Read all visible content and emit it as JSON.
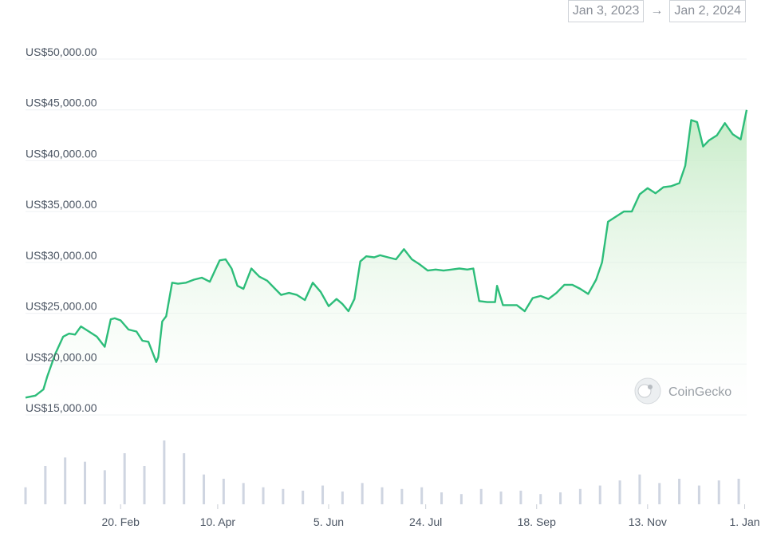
{
  "date_range": {
    "start": "Jan 3, 2023",
    "arrow": "→",
    "end": "Jan 2, 2024"
  },
  "watermark": {
    "text": "CoinGecko",
    "icon": "gecko-logo-icon"
  },
  "colors": {
    "line": "#2dbd7a",
    "fill_top": "#bfe9c0",
    "fill_bottom": "#ffffff",
    "volume": "#cfd5e1",
    "grid": "#eef0f3",
    "text": "#4b5563"
  },
  "chart_data": {
    "type": "line",
    "title": "",
    "xlabel": "",
    "ylabel": "",
    "ylim": [
      15000,
      50000
    ],
    "y_ticks": [
      {
        "value": 50000,
        "label": "US$50,000.00"
      },
      {
        "value": 45000,
        "label": "US$45,000.00"
      },
      {
        "value": 40000,
        "label": "US$40,000.00"
      },
      {
        "value": 35000,
        "label": "US$35,000.00"
      },
      {
        "value": 30000,
        "label": "US$30,000.00"
      },
      {
        "value": 25000,
        "label": "US$25,000.00"
      },
      {
        "value": 20000,
        "label": "US$20,000.00"
      },
      {
        "value": 15000,
        "label": "US$15,000.00"
      }
    ],
    "x_range": [
      "2023-01-03",
      "2024-01-02"
    ],
    "x_ticks": [
      {
        "date": "2023-02-20",
        "label": "20. Feb"
      },
      {
        "date": "2023-04-10",
        "label": "10. Apr"
      },
      {
        "date": "2023-06-05",
        "label": "5. Jun"
      },
      {
        "date": "2023-07-24",
        "label": "24. Jul"
      },
      {
        "date": "2023-09-18",
        "label": "18. Sep"
      },
      {
        "date": "2023-11-13",
        "label": "13. Nov"
      },
      {
        "date": "2024-01-01",
        "label": "1. Jan"
      }
    ],
    "grid": true,
    "series": [
      {
        "name": "",
        "x": [
          "2023-01-03",
          "2023-01-08",
          "2023-01-12",
          "2023-01-14",
          "2023-01-18",
          "2023-01-22",
          "2023-01-25",
          "2023-01-28",
          "2023-01-31",
          "2023-02-04",
          "2023-02-08",
          "2023-02-12",
          "2023-02-15",
          "2023-02-17",
          "2023-02-20",
          "2023-02-24",
          "2023-02-28",
          "2023-03-03",
          "2023-03-06",
          "2023-03-10",
          "2023-03-11",
          "2023-03-13",
          "2023-03-15",
          "2023-03-18",
          "2023-03-21",
          "2023-03-25",
          "2023-03-29",
          "2023-04-02",
          "2023-04-06",
          "2023-04-11",
          "2023-04-14",
          "2023-04-17",
          "2023-04-20",
          "2023-04-23",
          "2023-04-27",
          "2023-05-01",
          "2023-05-05",
          "2023-05-09",
          "2023-05-12",
          "2023-05-16",
          "2023-05-20",
          "2023-05-24",
          "2023-05-28",
          "2023-06-01",
          "2023-06-05",
          "2023-06-09",
          "2023-06-12",
          "2023-06-15",
          "2023-06-18",
          "2023-06-21",
          "2023-06-24",
          "2023-06-28",
          "2023-07-01",
          "2023-07-05",
          "2023-07-09",
          "2023-07-13",
          "2023-07-17",
          "2023-07-21",
          "2023-07-25",
          "2023-07-29",
          "2023-08-02",
          "2023-08-06",
          "2023-08-10",
          "2023-08-14",
          "2023-08-17",
          "2023-08-20",
          "2023-08-24",
          "2023-08-28",
          "2023-08-29",
          "2023-09-01",
          "2023-09-05",
          "2023-09-08",
          "2023-09-12",
          "2023-09-16",
          "2023-09-20",
          "2023-09-24",
          "2023-09-28",
          "2023-10-02",
          "2023-10-06",
          "2023-10-10",
          "2023-10-14",
          "2023-10-18",
          "2023-10-21",
          "2023-10-24",
          "2023-10-28",
          "2023-11-01",
          "2023-11-05",
          "2023-11-09",
          "2023-11-13",
          "2023-11-17",
          "2023-11-21",
          "2023-11-25",
          "2023-11-29",
          "2023-12-02",
          "2023-12-05",
          "2023-12-08",
          "2023-12-11",
          "2023-12-14",
          "2023-12-18",
          "2023-12-22",
          "2023-12-26",
          "2023-12-30",
          "2024-01-02"
        ],
        "y": [
          16700,
          16900,
          17500,
          18800,
          21000,
          22700,
          23000,
          22900,
          23700,
          23200,
          22700,
          21700,
          24400,
          24500,
          24300,
          23400,
          23200,
          22300,
          22200,
          20200,
          20700,
          24200,
          24700,
          28000,
          27900,
          28000,
          28300,
          28500,
          28100,
          30200,
          30300,
          29400,
          27700,
          27400,
          29400,
          28600,
          28200,
          27400,
          26800,
          27000,
          26800,
          26300,
          28000,
          27100,
          25700,
          26400,
          25900,
          25200,
          26400,
          30100,
          30600,
          30500,
          30700,
          30500,
          30300,
          31300,
          30300,
          29800,
          29200,
          29300,
          29200,
          29300,
          29400,
          29300,
          29400,
          26200,
          26100,
          26100,
          27700,
          25800,
          25800,
          25800,
          25200,
          26500,
          26700,
          26400,
          27000,
          27800,
          27800,
          27400,
          26900,
          28300,
          30000,
          34000,
          34500,
          35000,
          35000,
          36700,
          37300,
          36800,
          37400,
          37500,
          37800,
          39500,
          44000,
          43800,
          41400,
          42000,
          42500,
          43700,
          42600,
          42100,
          45000
        ]
      }
    ],
    "volume": {
      "name": "",
      "x": [
        "2023-01-03",
        "2023-01-13",
        "2023-01-23",
        "2023-02-02",
        "2023-02-12",
        "2023-02-22",
        "2023-03-04",
        "2023-03-14",
        "2023-03-24",
        "2023-04-03",
        "2023-04-13",
        "2023-04-23",
        "2023-05-03",
        "2023-05-13",
        "2023-05-23",
        "2023-06-02",
        "2023-06-12",
        "2023-06-22",
        "2023-07-02",
        "2023-07-12",
        "2023-07-22",
        "2023-08-01",
        "2023-08-11",
        "2023-08-21",
        "2023-08-31",
        "2023-09-10",
        "2023-09-20",
        "2023-09-30",
        "2023-10-10",
        "2023-10-20",
        "2023-10-30",
        "2023-11-09",
        "2023-11-19",
        "2023-11-29",
        "2023-12-09",
        "2023-12-19",
        "2023-12-29"
      ],
      "values": [
        20,
        45,
        55,
        50,
        40,
        60,
        45,
        75,
        60,
        35,
        30,
        25,
        20,
        18,
        16,
        22,
        15,
        25,
        20,
        18,
        20,
        14,
        12,
        18,
        15,
        16,
        12,
        14,
        18,
        22,
        28,
        35,
        25,
        30,
        22,
        28,
        30
      ]
    }
  }
}
